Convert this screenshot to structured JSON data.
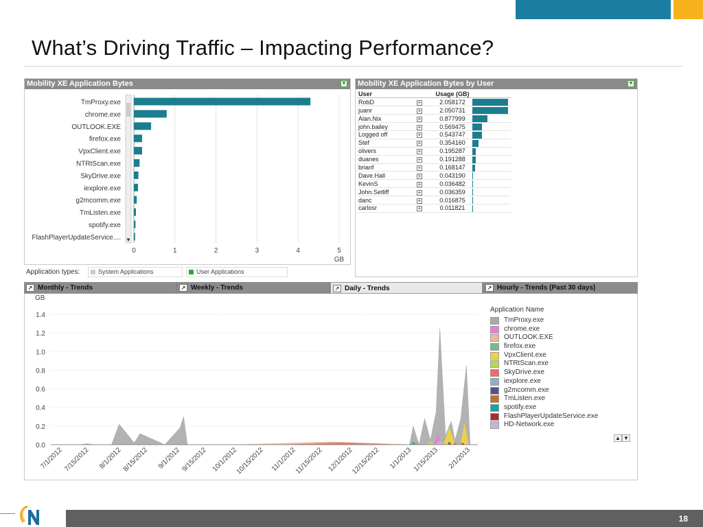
{
  "slide": {
    "title": "What’s Driving Traffic – Impacting Performance?",
    "page_number": "18",
    "accent_colors": {
      "blue": "#1B7EA0",
      "orange": "#F5B21A"
    }
  },
  "app_bytes_panel": {
    "title": "Mobility XE Application Bytes",
    "axis_unit": "GB",
    "filter_label": "Application types:",
    "filter_options": [
      {
        "label": "System Applications",
        "color": "#cccccc"
      },
      {
        "label": "User Applications",
        "color": "#3aa23a"
      }
    ]
  },
  "users_panel": {
    "title": "Mobility XE Application Bytes by User",
    "col_user": "User",
    "col_usage": "Usage (GB)",
    "rows": [
      {
        "user": "RobD",
        "usage": "2.058172",
        "value": 2.058172
      },
      {
        "user": "juanr",
        "usage": "2.050731",
        "value": 2.050731
      },
      {
        "user": "Alan.Nix",
        "usage": "0.877999",
        "value": 0.877999
      },
      {
        "user": "john.bailey",
        "usage": "0.569475",
        "value": 0.569475
      },
      {
        "user": "Logged off",
        "usage": "0.543747",
        "value": 0.543747
      },
      {
        "user": "Stef",
        "usage": "0.354160",
        "value": 0.35416
      },
      {
        "user": "olivers",
        "usage": "0.195287",
        "value": 0.195287
      },
      {
        "user": "duanes",
        "usage": "0.191288",
        "value": 0.191288
      },
      {
        "user": "brianf",
        "usage": "0.168147",
        "value": 0.168147
      },
      {
        "user": "Dave.Hall",
        "usage": "0.043190",
        "value": 0.04319
      },
      {
        "user": "KevinS",
        "usage": "0.036482",
        "value": 0.036482
      },
      {
        "user": "John.Setliff",
        "usage": "0.036359",
        "value": 0.036359
      },
      {
        "user": "danc",
        "usage": "0.016875",
        "value": 0.016875
      },
      {
        "user": "carlosr",
        "usage": "0.011821",
        "value": 0.011821
      }
    ]
  },
  "trend_tabs": [
    {
      "label": "Monthly - Trends",
      "active": false
    },
    {
      "label": "Weekly - Trends",
      "active": false
    },
    {
      "label": "Daily - Trends",
      "active": true
    },
    {
      "label": "Hourly - Trends (Past 30 days)",
      "active": false
    }
  ],
  "chart_data": [
    {
      "type": "bar",
      "orientation": "horizontal",
      "title": "Mobility XE Application Bytes",
      "xlabel": "GB",
      "xlim": [
        0,
        5
      ],
      "xticks": [
        "0",
        "1",
        "2",
        "3",
        "4",
        "5"
      ],
      "categories": [
        "TmProxy.exe",
        "chrome.exe",
        "OUTLOOK.EXE",
        "firefox.exe",
        "VpxClient.exe",
        "NTRtScan.exe",
        "SkyDrive.exe",
        "iexplore.exe",
        "g2mcomm.exe",
        "TmListen.exe",
        "spotify.exe",
        "FlashPlayerUpdateService...."
      ],
      "values": [
        4.3,
        0.8,
        0.42,
        0.2,
        0.2,
        0.14,
        0.11,
        0.1,
        0.07,
        0.05,
        0.04,
        0.03
      ],
      "color": "#1B7E90",
      "grid": true
    },
    {
      "type": "area",
      "stacked": true,
      "title": "Daily - Trends",
      "ylabel": "GB",
      "ylim": [
        0,
        1.4
      ],
      "yticks": [
        "0.0",
        "0.2",
        "0.4",
        "0.6",
        "0.8",
        "1.0",
        "1.2",
        "1.4"
      ],
      "x_start": "2012-06-25",
      "x_end": "2013-02-05",
      "xticks": [
        "7/1/2012",
        "7/15/2012",
        "8/1/2012",
        "8/15/2012",
        "9/1/2012",
        "9/15/2012",
        "10/1/2012",
        "10/15/2012",
        "11/1/2012",
        "11/15/2012",
        "12/1/2012",
        "12/15/2012",
        "1/1/2013",
        "1/15/2013",
        "2/1/2013"
      ],
      "legend_title": "Application Name",
      "legend_position": "right",
      "series": [
        {
          "name": "TmProxy.exe",
          "color": "#aaaaaa",
          "points": [
            [
              "2012-07-27",
              0
            ],
            [
              "2012-07-31",
              0.22
            ],
            [
              "2012-08-08",
              0.02
            ],
            [
              "2012-08-11",
              0.12
            ],
            [
              "2012-08-24",
              0
            ],
            [
              "2012-09-01",
              0.18
            ],
            [
              "2012-09-03",
              0.3
            ],
            [
              "2012-09-05",
              0
            ],
            [
              "2012-12-31",
              0
            ],
            [
              "2013-01-02",
              0.2
            ],
            [
              "2013-01-05",
              0
            ],
            [
              "2013-01-08",
              0.28
            ],
            [
              "2013-01-11",
              0.05
            ],
            [
              "2013-01-14",
              0.35
            ],
            [
              "2013-01-16",
              1.25
            ],
            [
              "2013-01-19",
              0.1
            ],
            [
              "2013-01-22",
              0.25
            ],
            [
              "2013-01-24",
              0.05
            ],
            [
              "2013-01-27",
              0.28
            ],
            [
              "2013-01-30",
              0.85
            ],
            [
              "2013-02-01",
              0
            ]
          ]
        },
        {
          "name": "chrome.exe",
          "color": "#e97fd5",
          "points": [
            [
              "2013-01-13",
              0
            ],
            [
              "2013-01-15",
              0.12
            ],
            [
              "2013-01-17",
              0
            ],
            [
              "2013-01-27",
              0
            ],
            [
              "2013-01-29",
              0.08
            ],
            [
              "2013-01-31",
              0
            ]
          ]
        },
        {
          "name": "OUTLOOK.EXE",
          "color": "#efb89a",
          "points": [
            [
              "2012-10-01",
              0
            ],
            [
              "2012-11-20",
              0.03
            ],
            [
              "2013-01-01",
              0
            ]
          ]
        },
        {
          "name": "firefox.exe",
          "color": "#6cc08a",
          "points": [
            [
              "2013-01-02",
              0
            ],
            [
              "2013-01-04",
              0.02
            ],
            [
              "2013-01-06",
              0
            ]
          ]
        },
        {
          "name": "VpxClient.exe",
          "color": "#f2d43c",
          "points": [
            [
              "2013-01-18",
              0
            ],
            [
              "2013-01-21",
              0.18
            ],
            [
              "2013-01-24",
              0
            ],
            [
              "2013-01-27",
              0
            ],
            [
              "2013-01-29",
              0.22
            ],
            [
              "2013-01-31",
              0
            ]
          ]
        },
        {
          "name": "NTRtScan.exe",
          "color": "#b6d95a",
          "points": [
            [
              "2013-01-09",
              0
            ],
            [
              "2013-01-11",
              0.04
            ],
            [
              "2013-01-13",
              0
            ]
          ]
        },
        {
          "name": "SkyDrive.exe",
          "color": "#ee6b63",
          "points": [
            [
              "2012-10-25",
              0
            ],
            [
              "2012-11-25",
              0.02
            ],
            [
              "2012-12-25",
              0
            ]
          ]
        },
        {
          "name": "iexplore.exe",
          "color": "#8fb0c8",
          "points": [
            [
              "2012-07-10",
              0
            ],
            [
              "2012-07-14",
              0.01
            ],
            [
              "2012-07-18",
              0
            ]
          ]
        },
        {
          "name": "g2mcomm.exe",
          "color": "#5b4f8f",
          "points": [
            [
              "2013-01-20",
              0
            ],
            [
              "2013-01-21",
              0.03
            ],
            [
              "2013-01-22",
              0
            ]
          ]
        },
        {
          "name": "TmListen.exe",
          "color": "#c0702f",
          "points": [
            [
              "2013-01-23",
              0
            ],
            [
              "2013-01-24",
              0.02
            ],
            [
              "2013-01-25",
              0
            ]
          ]
        },
        {
          "name": "spotify.exe",
          "color": "#17a3a3",
          "points": [
            [
              "2013-01-01",
              0
            ],
            [
              "2013-01-02",
              0.03
            ],
            [
              "2013-01-03",
              0
            ]
          ]
        },
        {
          "name": "FlashPlayerUpdateService.exe",
          "color": "#b02a2a",
          "points": [
            [
              "2013-01-27",
              0
            ],
            [
              "2013-01-28",
              0.02
            ],
            [
              "2013-01-29",
              0
            ]
          ]
        },
        {
          "name": "HD-Network.exe",
          "color": "#c7b3e0",
          "points": [
            [
              "2013-01-14",
              0
            ],
            [
              "2013-01-16",
              0.04
            ],
            [
              "2013-01-18",
              0
            ]
          ]
        }
      ]
    }
  ]
}
